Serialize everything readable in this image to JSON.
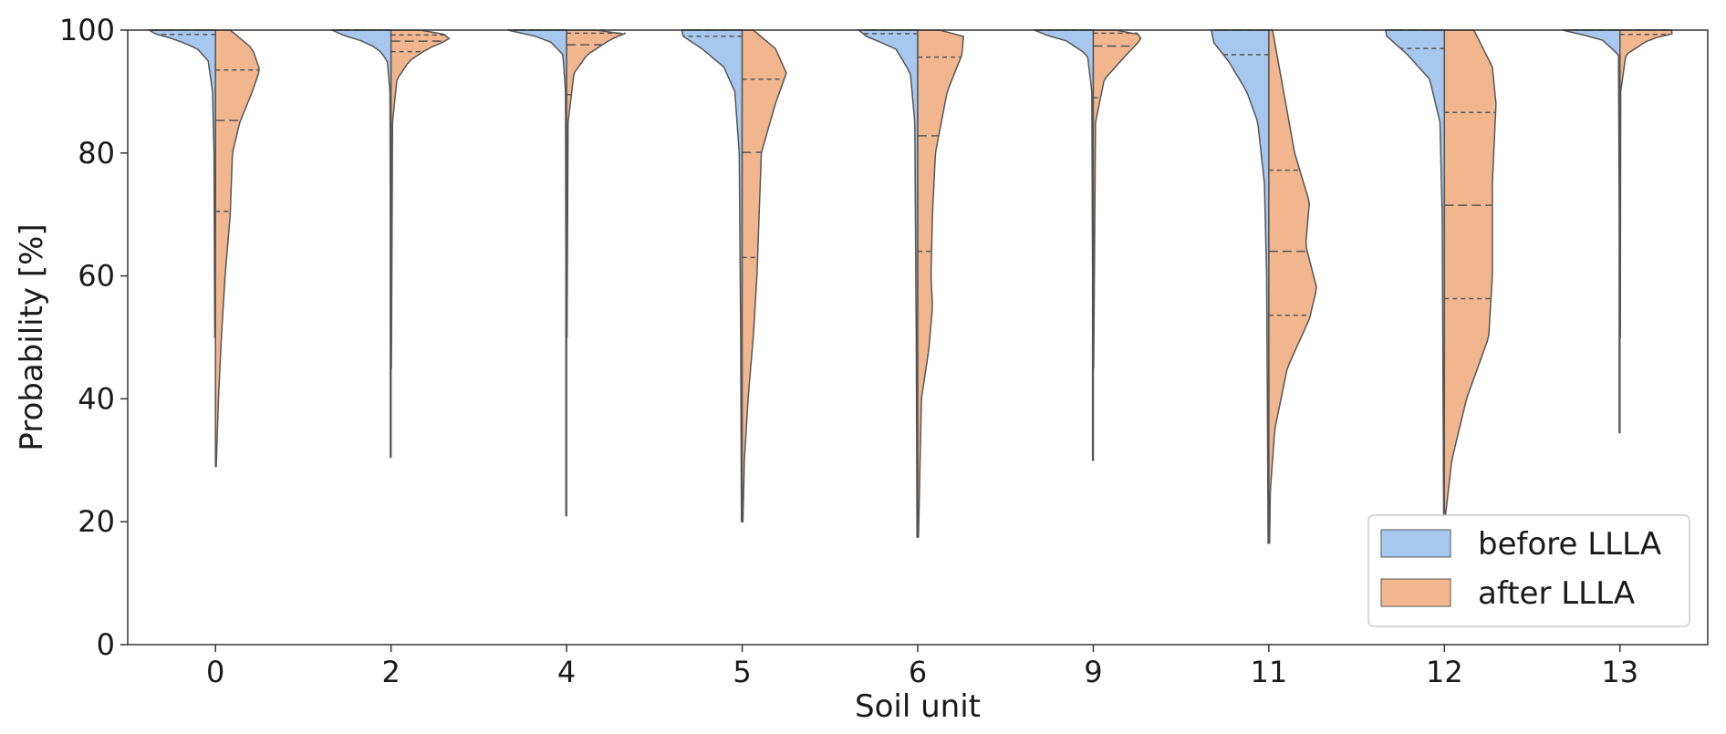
{
  "chart_data": {
    "type": "violin",
    "xlabel": "Soil unit",
    "ylabel": "Probability [%]",
    "ylim": [
      0,
      100
    ],
    "yticks": [
      0,
      20,
      40,
      60,
      80,
      100
    ],
    "categories": [
      "0",
      "2",
      "4",
      "5",
      "6",
      "9",
      "11",
      "12",
      "13"
    ],
    "grid": false,
    "legend_position": "bottom-right",
    "colors": {
      "before": "#a7c8ee",
      "after": "#f2b68e",
      "outline": "#555555"
    },
    "series": [
      {
        "name": "before LLLA",
        "side": "left",
        "violins": [
          {
            "min": 50,
            "max": 100,
            "q1": 99.3,
            "median": 100,
            "q3": 100,
            "profile": [
              [
                50,
                0.01
              ],
              [
                80,
                0.02
              ],
              [
                90,
                0.04
              ],
              [
                95,
                0.1
              ],
              [
                97,
                0.25
              ],
              [
                98.5,
                0.55
              ],
              [
                99.5,
                0.85
              ],
              [
                100,
                0.9
              ]
            ]
          },
          {
            "min": 30.5,
            "max": 100,
            "q1": 100,
            "median": 100,
            "q3": 100,
            "profile": [
              [
                30.5,
                0.01
              ],
              [
                70,
                0.01
              ],
              [
                90,
                0.015
              ],
              [
                95,
                0.05
              ],
              [
                97,
                0.18
              ],
              [
                98.5,
                0.45
              ],
              [
                99.5,
                0.75
              ],
              [
                100,
                0.8
              ]
            ]
          },
          {
            "min": 21,
            "max": 100,
            "q1": 100,
            "median": 100,
            "q3": 100,
            "profile": [
              [
                21,
                0.01
              ],
              [
                60,
                0.01
              ],
              [
                90,
                0.015
              ],
              [
                96,
                0.05
              ],
              [
                98.5,
                0.25
              ],
              [
                99.5,
                0.6
              ],
              [
                100,
                0.8
              ]
            ]
          },
          {
            "min": 20,
            "max": 100,
            "q1": 99,
            "median": 100,
            "q3": 100,
            "profile": [
              [
                20,
                0.01
              ],
              [
                50,
                0.02
              ],
              [
                80,
                0.04
              ],
              [
                90,
                0.1
              ],
              [
                94,
                0.25
              ],
              [
                97,
                0.55
              ],
              [
                99,
                0.8
              ],
              [
                100,
                0.82
              ]
            ]
          },
          {
            "min": 17.5,
            "max": 100,
            "q1": 99.4,
            "median": 100,
            "q3": 100,
            "profile": [
              [
                17.5,
                0.01
              ],
              [
                50,
                0.02
              ],
              [
                85,
                0.04
              ],
              [
                93,
                0.1
              ],
              [
                97,
                0.3
              ],
              [
                99,
                0.7
              ],
              [
                100,
                0.8
              ]
            ]
          },
          {
            "min": 30,
            "max": 100,
            "q1": 100,
            "median": 100,
            "q3": 100,
            "profile": [
              [
                30,
                0.01
              ],
              [
                60,
                0.01
              ],
              [
                90,
                0.02
              ],
              [
                96,
                0.08
              ],
              [
                98.5,
                0.4
              ],
              [
                99.5,
                0.75
              ],
              [
                100,
                0.8
              ]
            ]
          },
          {
            "min": 16.5,
            "max": 100,
            "q1": 96,
            "median": 100,
            "q3": 100,
            "profile": [
              [
                16.5,
                0.01
              ],
              [
                40,
                0.02
              ],
              [
                60,
                0.03
              ],
              [
                75,
                0.06
              ],
              [
                85,
                0.15
              ],
              [
                90,
                0.3
              ],
              [
                95,
                0.55
              ],
              [
                98,
                0.75
              ],
              [
                100,
                0.78
              ]
            ]
          },
          {
            "min": 20.5,
            "max": 100,
            "q1": 97,
            "median": 100,
            "q3": 100,
            "profile": [
              [
                20.5,
                0.01
              ],
              [
                45,
                0.02
              ],
              [
                70,
                0.03
              ],
              [
                85,
                0.06
              ],
              [
                92,
                0.2
              ],
              [
                96,
                0.5
              ],
              [
                99,
                0.78
              ],
              [
                100,
                0.8
              ]
            ]
          },
          {
            "min": 34.5,
            "max": 100,
            "q1": 100,
            "median": 100,
            "q3": 100,
            "profile": [
              [
                34.5,
                0.01
              ],
              [
                70,
                0.01
              ],
              [
                96,
                0.02
              ],
              [
                98.5,
                0.25
              ],
              [
                99.5,
                0.6
              ],
              [
                100,
                0.78
              ]
            ]
          }
        ]
      },
      {
        "name": "after LLLA",
        "side": "right",
        "violins": [
          {
            "min": 29,
            "max": 100,
            "q1": 70.5,
            "median": 85.3,
            "q3": 93.5,
            "profile": [
              [
                29,
                0.01
              ],
              [
                40,
                0.04
              ],
              [
                50,
                0.08
              ],
              [
                60,
                0.13
              ],
              [
                70,
                0.2
              ],
              [
                80,
                0.23
              ],
              [
                85,
                0.33
              ],
              [
                90,
                0.5
              ],
              [
                93.5,
                0.6
              ],
              [
                97,
                0.5
              ],
              [
                100,
                0.2
              ]
            ]
          },
          {
            "min": 45,
            "max": 100,
            "q1": 96.5,
            "median": 98.2,
            "q3": 99.2,
            "profile": [
              [
                45,
                0.005
              ],
              [
                85,
                0.02
              ],
              [
                92,
                0.08
              ],
              [
                95,
                0.25
              ],
              [
                97,
                0.5
              ],
              [
                98.5,
                0.8
              ],
              [
                99.5,
                0.7
              ],
              [
                100,
                0.4
              ]
            ]
          },
          {
            "min": 50,
            "max": 100,
            "q1": 89.5,
            "median": 97.6,
            "q3": 99.5,
            "profile": [
              [
                50,
                0.005
              ],
              [
                85,
                0.02
              ],
              [
                93,
                0.1
              ],
              [
                96,
                0.28
              ],
              [
                98.5,
                0.6
              ],
              [
                99.5,
                0.8
              ],
              [
                100,
                0.4
              ]
            ]
          },
          {
            "min": 20,
            "max": 100,
            "q1": 63,
            "median": 80.1,
            "q3": 92,
            "profile": [
              [
                20,
                0.01
              ],
              [
                30,
                0.03
              ],
              [
                40,
                0.08
              ],
              [
                50,
                0.15
              ],
              [
                60,
                0.2
              ],
              [
                70,
                0.23
              ],
              [
                80,
                0.26
              ],
              [
                88,
                0.45
              ],
              [
                93,
                0.6
              ],
              [
                97,
                0.45
              ],
              [
                100,
                0.15
              ]
            ]
          },
          {
            "min": 17.5,
            "max": 100,
            "q1": 64,
            "median": 82.8,
            "q3": 95.6,
            "profile": [
              [
                17.5,
                0.01
              ],
              [
                40,
                0.05
              ],
              [
                48,
                0.15
              ],
              [
                55,
                0.2
              ],
              [
                60,
                0.18
              ],
              [
                70,
                0.2
              ],
              [
                80,
                0.24
              ],
              [
                90,
                0.4
              ],
              [
                96,
                0.6
              ],
              [
                99,
                0.62
              ],
              [
                100,
                0.3
              ]
            ]
          },
          {
            "min": 45,
            "max": 100,
            "q1": 89,
            "median": 97.4,
            "q3": 99.5,
            "profile": [
              [
                45,
                0.005
              ],
              [
                85,
                0.03
              ],
              [
                92,
                0.15
              ],
              [
                96,
                0.45
              ],
              [
                98.5,
                0.65
              ],
              [
                99.5,
                0.6
              ],
              [
                100,
                0.3
              ]
            ]
          },
          {
            "min": 16.5,
            "max": 100,
            "q1": 53.6,
            "median": 64,
            "q3": 77.2,
            "profile": [
              [
                16.5,
                0.01
              ],
              [
                25,
                0.02
              ],
              [
                35,
                0.08
              ],
              [
                45,
                0.25
              ],
              [
                53,
                0.55
              ],
              [
                58,
                0.65
              ],
              [
                65,
                0.5
              ],
              [
                72,
                0.55
              ],
              [
                80,
                0.35
              ],
              [
                90,
                0.2
              ],
              [
                100,
                0.05
              ]
            ]
          },
          {
            "min": 20.5,
            "max": 100,
            "q1": 56.3,
            "median": 71.5,
            "q3": 86.6,
            "profile": [
              [
                20.5,
                0.01
              ],
              [
                30,
                0.1
              ],
              [
                40,
                0.3
              ],
              [
                50,
                0.6
              ],
              [
                60,
                0.65
              ],
              [
                75,
                0.65
              ],
              [
                88,
                0.7
              ],
              [
                94,
                0.65
              ],
              [
                100,
                0.4
              ]
            ]
          },
          {
            "min": 50,
            "max": 100,
            "q1": 99.3,
            "median": 100,
            "q3": 100,
            "profile": [
              [
                50,
                0.005
              ],
              [
                90,
                0.01
              ],
              [
                96,
                0.08
              ],
              [
                98.5,
                0.4
              ],
              [
                99.5,
                0.75
              ],
              [
                100,
                0.7
              ]
            ]
          }
        ]
      }
    ],
    "legend": [
      "before LLLA",
      "after LLLA"
    ]
  }
}
